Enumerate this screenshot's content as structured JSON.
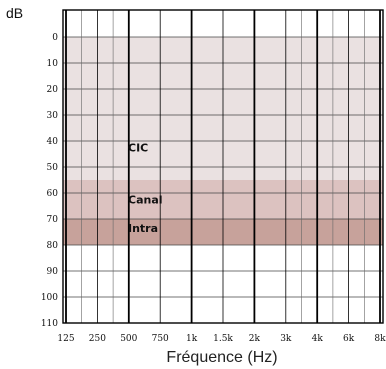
{
  "chart_data": {
    "type": "area",
    "title": "",
    "ylabel": "dB",
    "xlabel": "Fréquence (Hz)",
    "y_inverted": true,
    "ylim": [
      0,
      110
    ],
    "y_ticks": [
      0,
      10,
      20,
      30,
      40,
      50,
      60,
      70,
      80,
      90,
      100,
      110
    ],
    "x_ticks": [
      {
        "label": "125",
        "hz": 125
      },
      {
        "label": "250",
        "hz": 250
      },
      {
        "label": "500",
        "hz": 500
      },
      {
        "label": "750",
        "hz": 750
      },
      {
        "label": "1k",
        "hz": 1000
      },
      {
        "label": "1.5k",
        "hz": 1500
      },
      {
        "label": "2k",
        "hz": 2000
      },
      {
        "label": "3k",
        "hz": 3000
      },
      {
        "label": "4k",
        "hz": 4000
      },
      {
        "label": "6k",
        "hz": 6000
      },
      {
        "label": "8k",
        "hz": 8000
      }
    ],
    "bands": [
      {
        "name": "CIC",
        "from_db": 0,
        "to_db": 55,
        "color": "#eae1e1"
      },
      {
        "name": "Canal",
        "from_db": 55,
        "to_db": 80,
        "color": "#dcc2c0"
      },
      {
        "name": "Intra",
        "from_db": 70,
        "to_db": 80,
        "color": "#c7a29b"
      }
    ],
    "grid": true
  }
}
